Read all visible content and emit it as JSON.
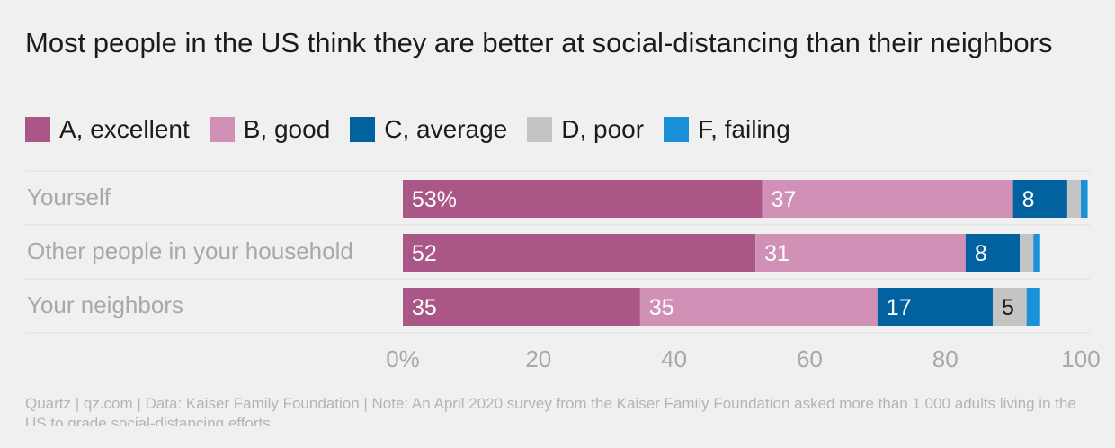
{
  "title": "Most people in the US think they are better at social-distancing than their neighbors",
  "footer": "Quartz | qz.com | Data: Kaiser Family Foundation | Note: An April 2020 survey from the Kaiser Family Foundation asked more than 1,000 adults living in the US to grade social-distancing efforts.",
  "legend": [
    {
      "label": "A, excellent",
      "color": "#aa5787"
    },
    {
      "label": "B, good",
      "color": "#d190b6"
    },
    {
      "label": "C, average",
      "color": "#02619f"
    },
    {
      "label": "D, poor",
      "color": "#c4c4c4"
    },
    {
      "label": "F, failing",
      "color": "#1990d8"
    }
  ],
  "chart_data": {
    "type": "bar",
    "orientation": "horizontal",
    "stacked": true,
    "categories": [
      "Yourself",
      "Other people in your household",
      "Your neighbors"
    ],
    "series": [
      {
        "name": "A, excellent",
        "color": "#aa5787",
        "values": [
          53,
          52,
          35
        ],
        "labels": [
          "53%",
          "52",
          "35"
        ]
      },
      {
        "name": "B, good",
        "color": "#d190b6",
        "values": [
          37,
          31,
          35
        ],
        "labels": [
          "37",
          "31",
          "35"
        ]
      },
      {
        "name": "C, average",
        "color": "#02619f",
        "values": [
          8,
          8,
          17
        ],
        "labels": [
          "8",
          "8",
          "17"
        ]
      },
      {
        "name": "D, poor",
        "color": "#c4c4c4",
        "values": [
          2,
          2,
          5
        ],
        "labels": [
          "",
          "",
          "5"
        ]
      },
      {
        "name": "F, failing",
        "color": "#1990d8",
        "values": [
          1,
          1,
          2
        ],
        "labels": [
          "",
          "",
          ""
        ]
      }
    ],
    "xlim": [
      0,
      100
    ],
    "xticks": [
      0,
      20,
      40,
      60,
      80,
      100
    ],
    "xtick_labels": [
      "0%",
      "20",
      "40",
      "60",
      "80",
      "100"
    ],
    "legend_position": "top-left",
    "grid": false
  }
}
